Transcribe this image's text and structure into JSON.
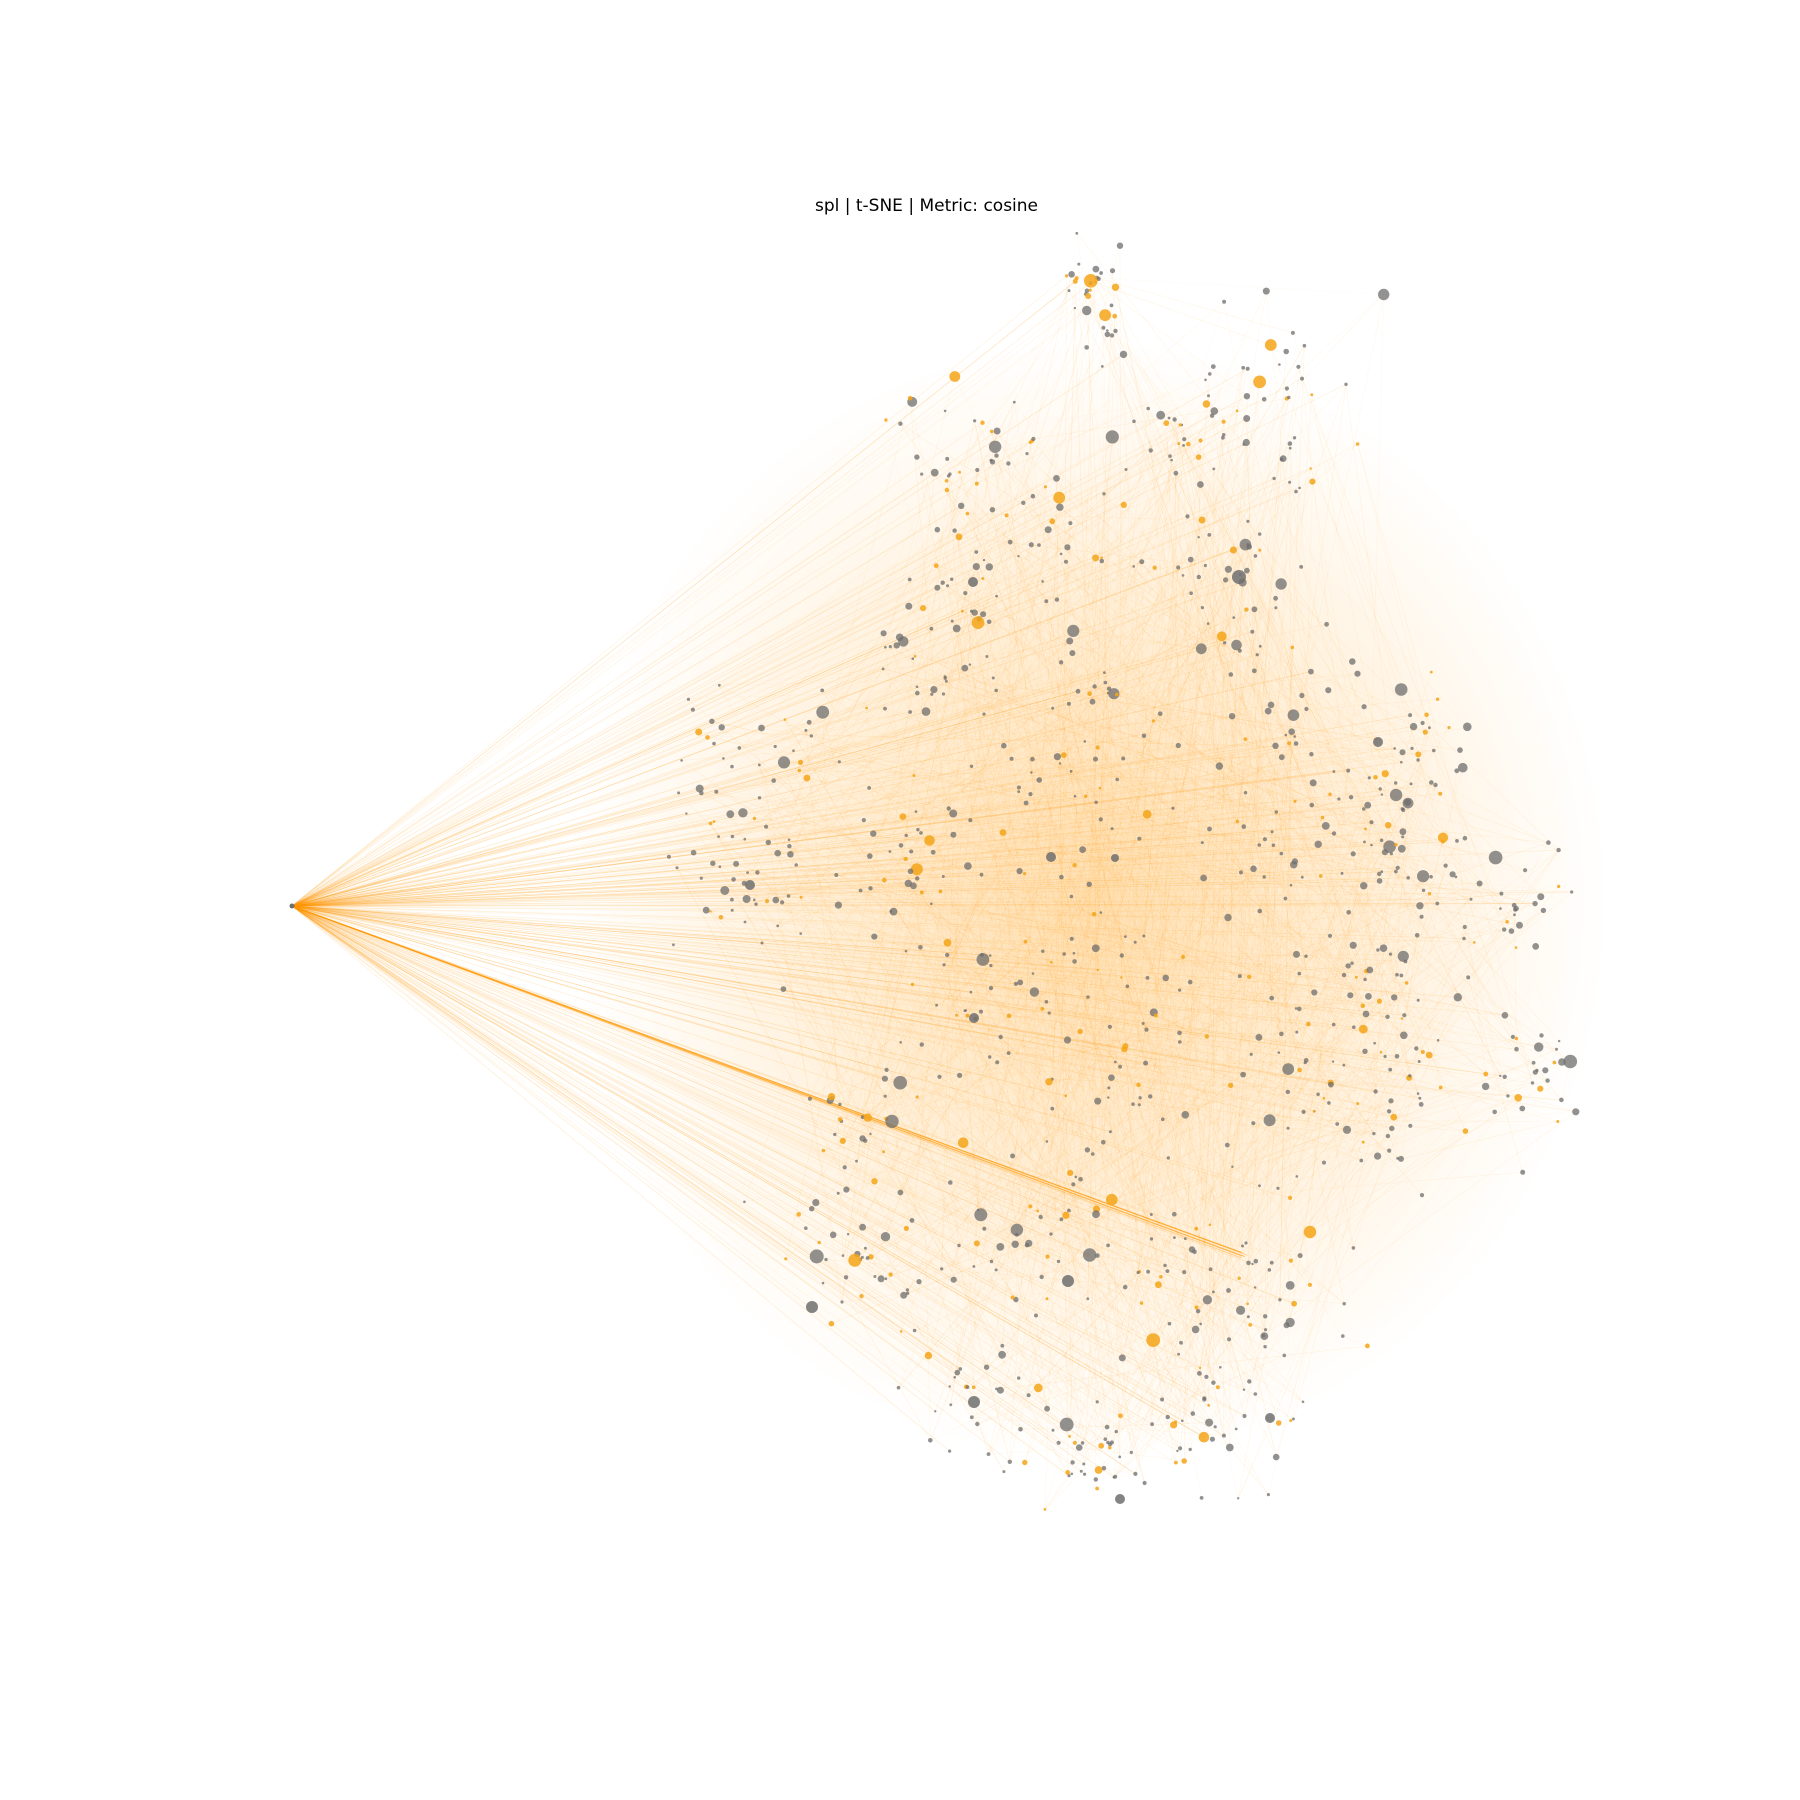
{
  "figure": {
    "title": "spl | t-SNE | Metric: cosine"
  },
  "colors": {
    "background": "#ffffff",
    "edge": "#ff9900",
    "node_gray": "#6e6e6e",
    "node_orange": "#f5a418",
    "title_text": "#000000"
  },
  "graph": {
    "type": "network",
    "layout": "t-SNE",
    "metric": "cosine",
    "node_colors": [
      "gray",
      "orange"
    ],
    "edge_color": "orange",
    "axes": "hidden"
  }
}
